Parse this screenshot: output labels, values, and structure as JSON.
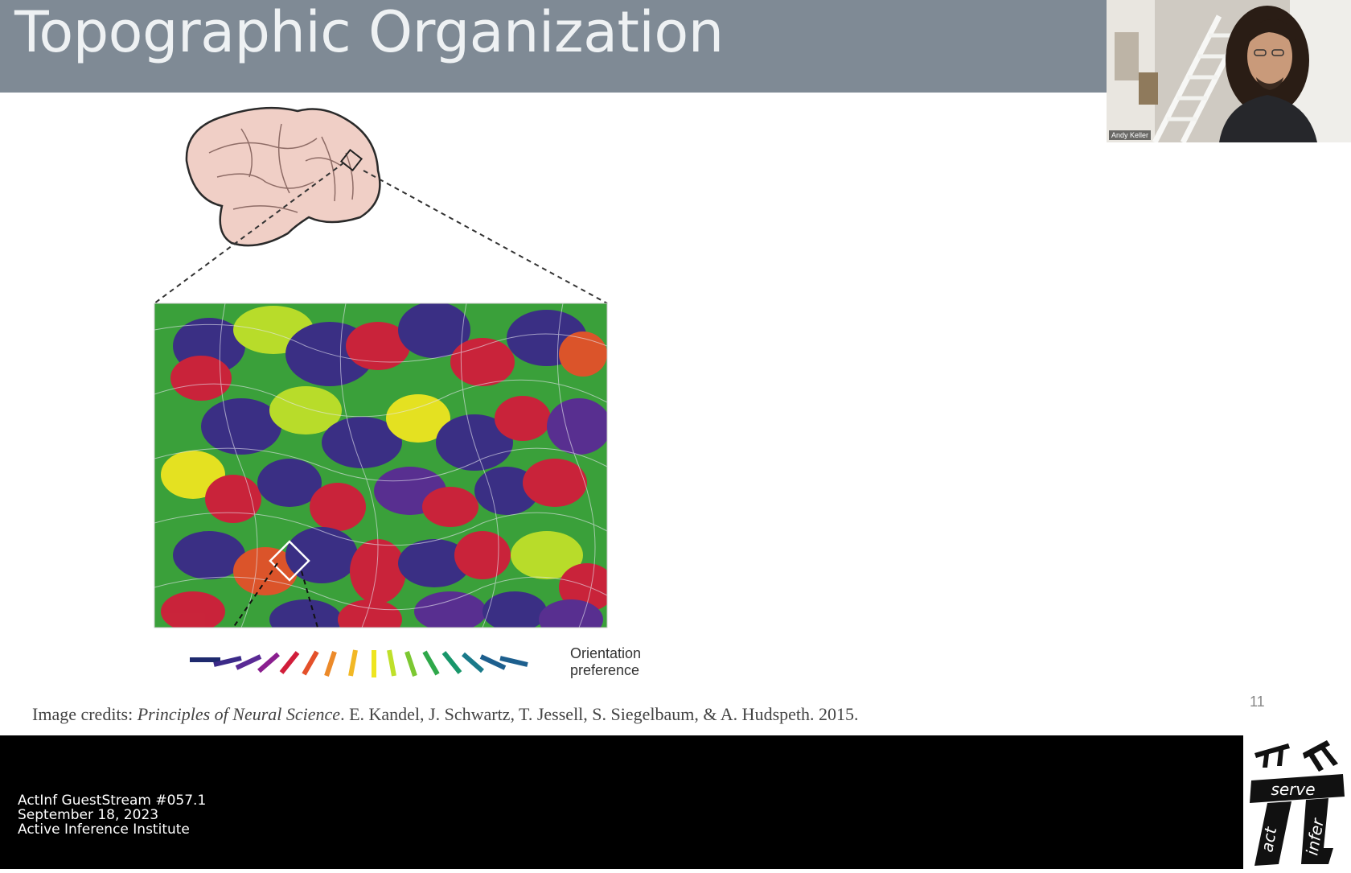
{
  "slide": {
    "title": "Topographic Organization",
    "orientation_label_line1": "Orientation",
    "orientation_label_line2": "preference",
    "credits_prefix": "Image credits: ",
    "credits_book": "Principles of Neural Science",
    "credits_authors": ". E. Kandel, J. Schwartz, T. Jessell, S. Siegelbaum, & A. Hudspeth. 2015.",
    "page_number": "11"
  },
  "webcam": {
    "participant_name": "Andy Keller"
  },
  "footer": {
    "line1": "ActInf GuestStream #057.1",
    "line2": "September 18, 2023",
    "line3": "Active Inference Institute"
  },
  "logo": {
    "word_serve": "serve",
    "word_act": "act",
    "word_infer": "infer",
    "icon": "pi-logo-icon"
  },
  "colors": {
    "header_bg": "#7f8a95",
    "footer_bg": "#000000",
    "orientation_scale": [
      "#1e2a6e",
      "#3b2a88",
      "#5a2a95",
      "#8a1f8f",
      "#d11d3a",
      "#e4502a",
      "#ec8a2a",
      "#f2b825",
      "#eee520",
      "#bfe02a",
      "#7cc832",
      "#2fa84a",
      "#18966a",
      "#1a7a8a",
      "#1d5f8e"
    ]
  }
}
